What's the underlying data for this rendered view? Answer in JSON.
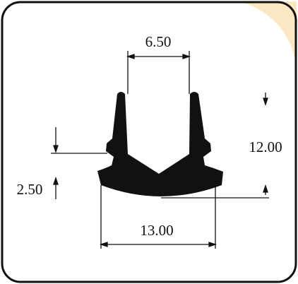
{
  "diagram": {
    "type": "rubber seal profile cross-section",
    "profile_color": "#111111",
    "frame_color": "#111111",
    "background_color": "#ffffff",
    "watermark_color": "#fbe7c2",
    "dimensions": {
      "top_opening": "6.50",
      "height": "12.00",
      "base_thickness": "2.50",
      "bottom_width": "13.00"
    }
  }
}
